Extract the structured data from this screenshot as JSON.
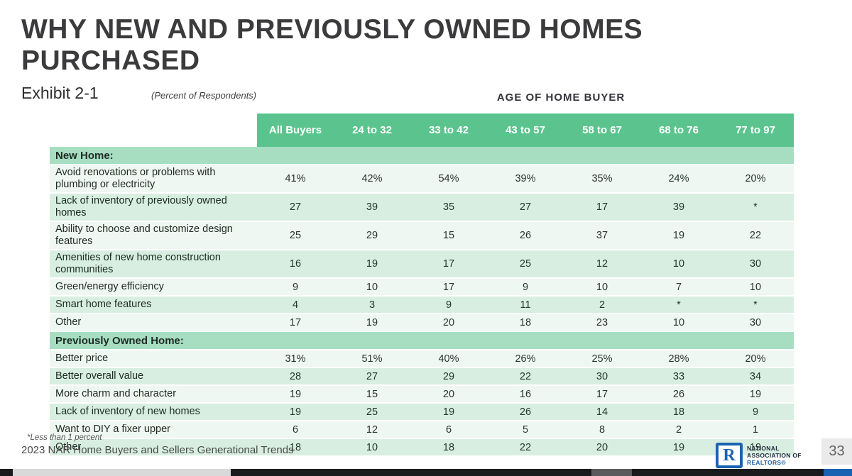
{
  "slide": {
    "title_line1": "WHY NEW AND PREVIOUSLY OWNED HOMES",
    "title_line2": "PURCHASED",
    "exhibit": "Exhibit 2-1",
    "subtitle_note": "(Percent of Respondents)",
    "age_header": "AGE OF HOME BUYER",
    "footnote": "*Less than 1 percent",
    "source": "2023 NAR Home Buyers and Sellers Generational Trends",
    "page_number": "33"
  },
  "logo": {
    "monogram": "R",
    "line1": "NATIONAL",
    "line2": "ASSOCIATION OF",
    "line3": "REALTORS®"
  },
  "colors": {
    "header_green": "#5bc48e",
    "section_green": "#a7dec2",
    "row_light": "#eef7f1",
    "row_mint": "#d8eee1",
    "nar_blue": "#1a63b2",
    "title_gray": "#3b3b3d"
  },
  "table": {
    "columns": [
      "All Buyers",
      "24 to 32",
      "33 to 42",
      "43 to 57",
      "58 to 67",
      "68 to 76",
      "77 to 97"
    ],
    "sections": [
      {
        "title": "New Home:",
        "rows": [
          {
            "label": "Avoid renovations or problems with plumbing or electricity",
            "values": [
              "41%",
              "42%",
              "54%",
              "39%",
              "35%",
              "24%",
              "20%"
            ]
          },
          {
            "label": "Lack of inventory of previously owned homes",
            "values": [
              "27",
              "39",
              "35",
              "27",
              "17",
              "39",
              "*"
            ]
          },
          {
            "label": "Ability to choose and customize design features",
            "values": [
              "25",
              "29",
              "15",
              "26",
              "37",
              "19",
              "22"
            ]
          },
          {
            "label": "Amenities of new home construction communities",
            "values": [
              "16",
              "19",
              "17",
              "25",
              "12",
              "10",
              "30"
            ]
          },
          {
            "label": "Green/energy efficiency",
            "values": [
              "9",
              "10",
              "17",
              "9",
              "10",
              "7",
              "10"
            ]
          },
          {
            "label": "Smart home features",
            "values": [
              "4",
              "3",
              "9",
              "11",
              "2",
              "*",
              "*"
            ]
          },
          {
            "label": "Other",
            "values": [
              "17",
              "19",
              "20",
              "18",
              "23",
              "10",
              "30"
            ]
          }
        ]
      },
      {
        "title": "Previously Owned Home:",
        "rows": [
          {
            "label": "Better price",
            "values": [
              "31%",
              "51%",
              "40%",
              "26%",
              "25%",
              "28%",
              "20%"
            ]
          },
          {
            "label": "Better overall value",
            "values": [
              "28",
              "27",
              "29",
              "22",
              "30",
              "33",
              "34"
            ]
          },
          {
            "label": "More charm and character",
            "values": [
              "19",
              "15",
              "20",
              "16",
              "17",
              "26",
              "19"
            ]
          },
          {
            "label": "Lack of inventory of new homes",
            "values": [
              "19",
              "25",
              "19",
              "26",
              "14",
              "18",
              "9"
            ]
          },
          {
            "label": "Want to DIY a fixer upper",
            "values": [
              "6",
              "12",
              "6",
              "5",
              "8",
              "2",
              "1"
            ]
          },
          {
            "label": "Other",
            "values": [
              "18",
              "10",
              "18",
              "22",
              "20",
              "19",
              "19"
            ]
          }
        ]
      }
    ]
  }
}
